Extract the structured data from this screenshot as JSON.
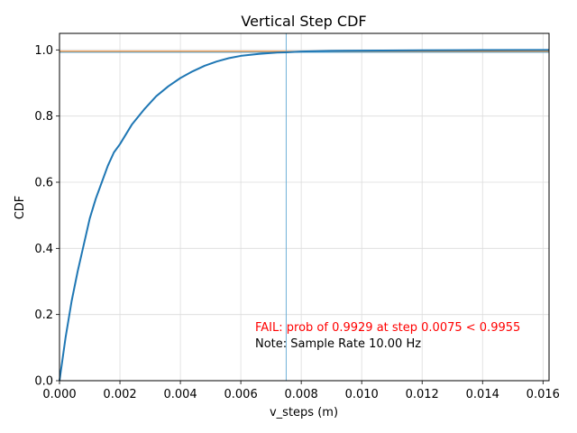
{
  "chart_data": {
    "type": "line",
    "title": "Vertical Step CDF",
    "xlabel": "v_steps (m)",
    "ylabel": "CDF",
    "xlim": [
      0.0,
      0.0162
    ],
    "ylim": [
      0.0,
      1.05
    ],
    "grid": true,
    "x_ticks": [
      0.0,
      0.002,
      0.004,
      0.006,
      0.008,
      0.01,
      0.012,
      0.014,
      0.016
    ],
    "x_tick_labels": [
      "0.000",
      "0.002",
      "0.004",
      "0.006",
      "0.008",
      "0.010",
      "0.012",
      "0.014",
      "0.016"
    ],
    "y_ticks": [
      0.0,
      0.2,
      0.4,
      0.6,
      0.8,
      1.0
    ],
    "y_tick_labels": [
      "0.0",
      "0.2",
      "0.4",
      "0.6",
      "0.8",
      "1.0"
    ],
    "series": [
      {
        "name": "CDF",
        "color": "#1f77b4",
        "x": [
          0.0,
          0.0002,
          0.0004,
          0.0006,
          0.0008,
          0.001,
          0.0012,
          0.0014,
          0.0016,
          0.0018,
          0.002,
          0.0024,
          0.0028,
          0.0032,
          0.0036,
          0.004,
          0.0044,
          0.0048,
          0.0052,
          0.0056,
          0.006,
          0.0066,
          0.0072,
          0.0075,
          0.008,
          0.009,
          0.01,
          0.012,
          0.014,
          0.0162
        ],
        "y": [
          0.0,
          0.13,
          0.24,
          0.33,
          0.41,
          0.49,
          0.55,
          0.6,
          0.65,
          0.69,
          0.715,
          0.775,
          0.82,
          0.86,
          0.89,
          0.915,
          0.935,
          0.952,
          0.965,
          0.975,
          0.982,
          0.988,
          0.992,
          0.9929,
          0.995,
          0.997,
          0.998,
          0.999,
          0.9995,
          1.0
        ]
      }
    ],
    "threshold_lines": [
      {
        "name": "required-probability",
        "orientation": "horizontal",
        "value": 0.9955,
        "color": "#ff7f0e"
      },
      {
        "name": "measured-probability",
        "orientation": "horizontal",
        "value": 0.9929,
        "color": "#5fa8d3"
      },
      {
        "name": "step-limit",
        "orientation": "vertical",
        "value": 0.0075,
        "color": "#5fa8d3"
      }
    ],
    "annotations": [
      {
        "text": "FAIL: prob of 0.9929 at step 0.0075 < 0.9955",
        "color": "#ff0000"
      },
      {
        "text": "Note: Sample Rate 10.00 Hz",
        "color": "#000000"
      }
    ]
  }
}
